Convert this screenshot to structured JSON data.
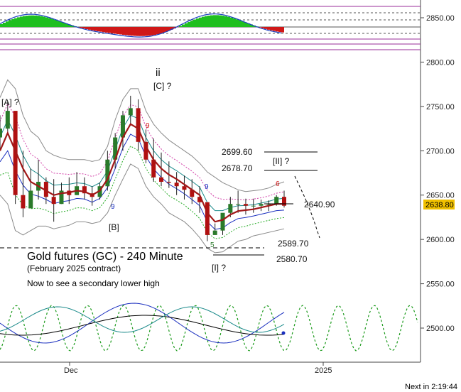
{
  "chart_data": {
    "type": "line",
    "title": "Gold futures (GC) - 240 Minute",
    "subtitle": "(February 2025 contract)",
    "note": "Now to see a secondary lower high",
    "footer": "Next in 2:19:44",
    "x_tick_labels": [
      "Dec",
      "2025"
    ],
    "y_ticks": [
      2500,
      2550,
      2600,
      2650,
      2700,
      2750,
      2800,
      2850
    ],
    "ylim": [
      2475,
      2865
    ],
    "last_price": "2638.80",
    "last_price_color": "#f0c000",
    "price_levels": [
      {
        "label": "2699.60",
        "value": 2699.6
      },
      {
        "label": "2678.70",
        "value": 2678.7
      },
      {
        "label": "2640.90",
        "value": 2640.9
      },
      {
        "label": "2589.70",
        "value": 2589.7
      },
      {
        "label": "2580.70",
        "value": 2580.7
      }
    ],
    "wave_labels": [
      "[A] ?",
      "ii",
      "[C] ?",
      "[B]",
      "[II] ?",
      "[I] ?"
    ],
    "count_labels": [
      "9",
      "9",
      "9",
      "6",
      "5"
    ],
    "price_series": [
      {
        "name": "high",
        "values": [
          2740,
          2755,
          2728,
          2700,
          2680,
          2690,
          2670,
          2668,
          2664,
          2670,
          2676,
          2670,
          2660,
          2664,
          2700,
          2720,
          2745,
          2762,
          2758,
          2724,
          2714,
          2698,
          2688,
          2676,
          2672,
          2668,
          2660,
          2634,
          2618,
          2612,
          2648,
          2655,
          2646,
          2646,
          2645,
          2644,
          2650,
          2655
        ]
      },
      {
        "name": "low",
        "values": [
          2700,
          2720,
          2640,
          2625,
          2638,
          2645,
          2640,
          2620,
          2640,
          2640,
          2650,
          2645,
          2638,
          2645,
          2655,
          2680,
          2700,
          2730,
          2700,
          2686,
          2665,
          2660,
          2658,
          2650,
          2645,
          2640,
          2630,
          2598,
          2605,
          2605,
          2625,
          2630,
          2628,
          2630,
          2632,
          2632,
          2638,
          2636
        ]
      },
      {
        "name": "close",
        "values": [
          2725,
          2745,
          2650,
          2635,
          2655,
          2665,
          2648,
          2640,
          2655,
          2650,
          2660,
          2652,
          2648,
          2660,
          2690,
          2715,
          2740,
          2748,
          2710,
          2690,
          2670,
          2665,
          2664,
          2660,
          2656,
          2648,
          2642,
          2605,
          2610,
          2630,
          2640,
          2640,
          2638,
          2638,
          2640,
          2640,
          2648,
          2638
        ]
      },
      {
        "name": "moving average",
        "values": [
          2700,
          2720,
          2700,
          2680,
          2665,
          2660,
          2655,
          2650,
          2652,
          2653,
          2655,
          2654,
          2650,
          2655,
          2668,
          2690,
          2715,
          2730,
          2725,
          2705,
          2690,
          2680,
          2673,
          2668,
          2662,
          2656,
          2650,
          2630,
          2620,
          2622,
          2628,
          2632,
          2633,
          2634,
          2636,
          2638,
          2640,
          2640
        ]
      },
      {
        "name": "upper band",
        "values": [
          2760,
          2780,
          2770,
          2740,
          2722,
          2715,
          2700,
          2695,
          2692,
          2690,
          2690,
          2690,
          2688,
          2690,
          2705,
          2735,
          2758,
          2770,
          2770,
          2745,
          2730,
          2720,
          2712,
          2706,
          2700,
          2694,
          2686,
          2676,
          2670,
          2664,
          2660,
          2656,
          2654,
          2655,
          2656,
          2658,
          2662,
          2665
        ]
      },
      {
        "name": "lower band",
        "values": [
          2650,
          2640,
          2610,
          2605,
          2610,
          2615,
          2615,
          2612,
          2614,
          2616,
          2620,
          2620,
          2618,
          2620,
          2630,
          2650,
          2668,
          2685,
          2680,
          2660,
          2648,
          2640,
          2630,
          2625,
          2620,
          2612,
          2602,
          2590,
          2585,
          2586,
          2592,
          2598,
          2600,
          2604,
          2606,
          2608,
          2610,
          2612
        ]
      }
    ],
    "xlim": [
      0,
      62
    ]
  }
}
